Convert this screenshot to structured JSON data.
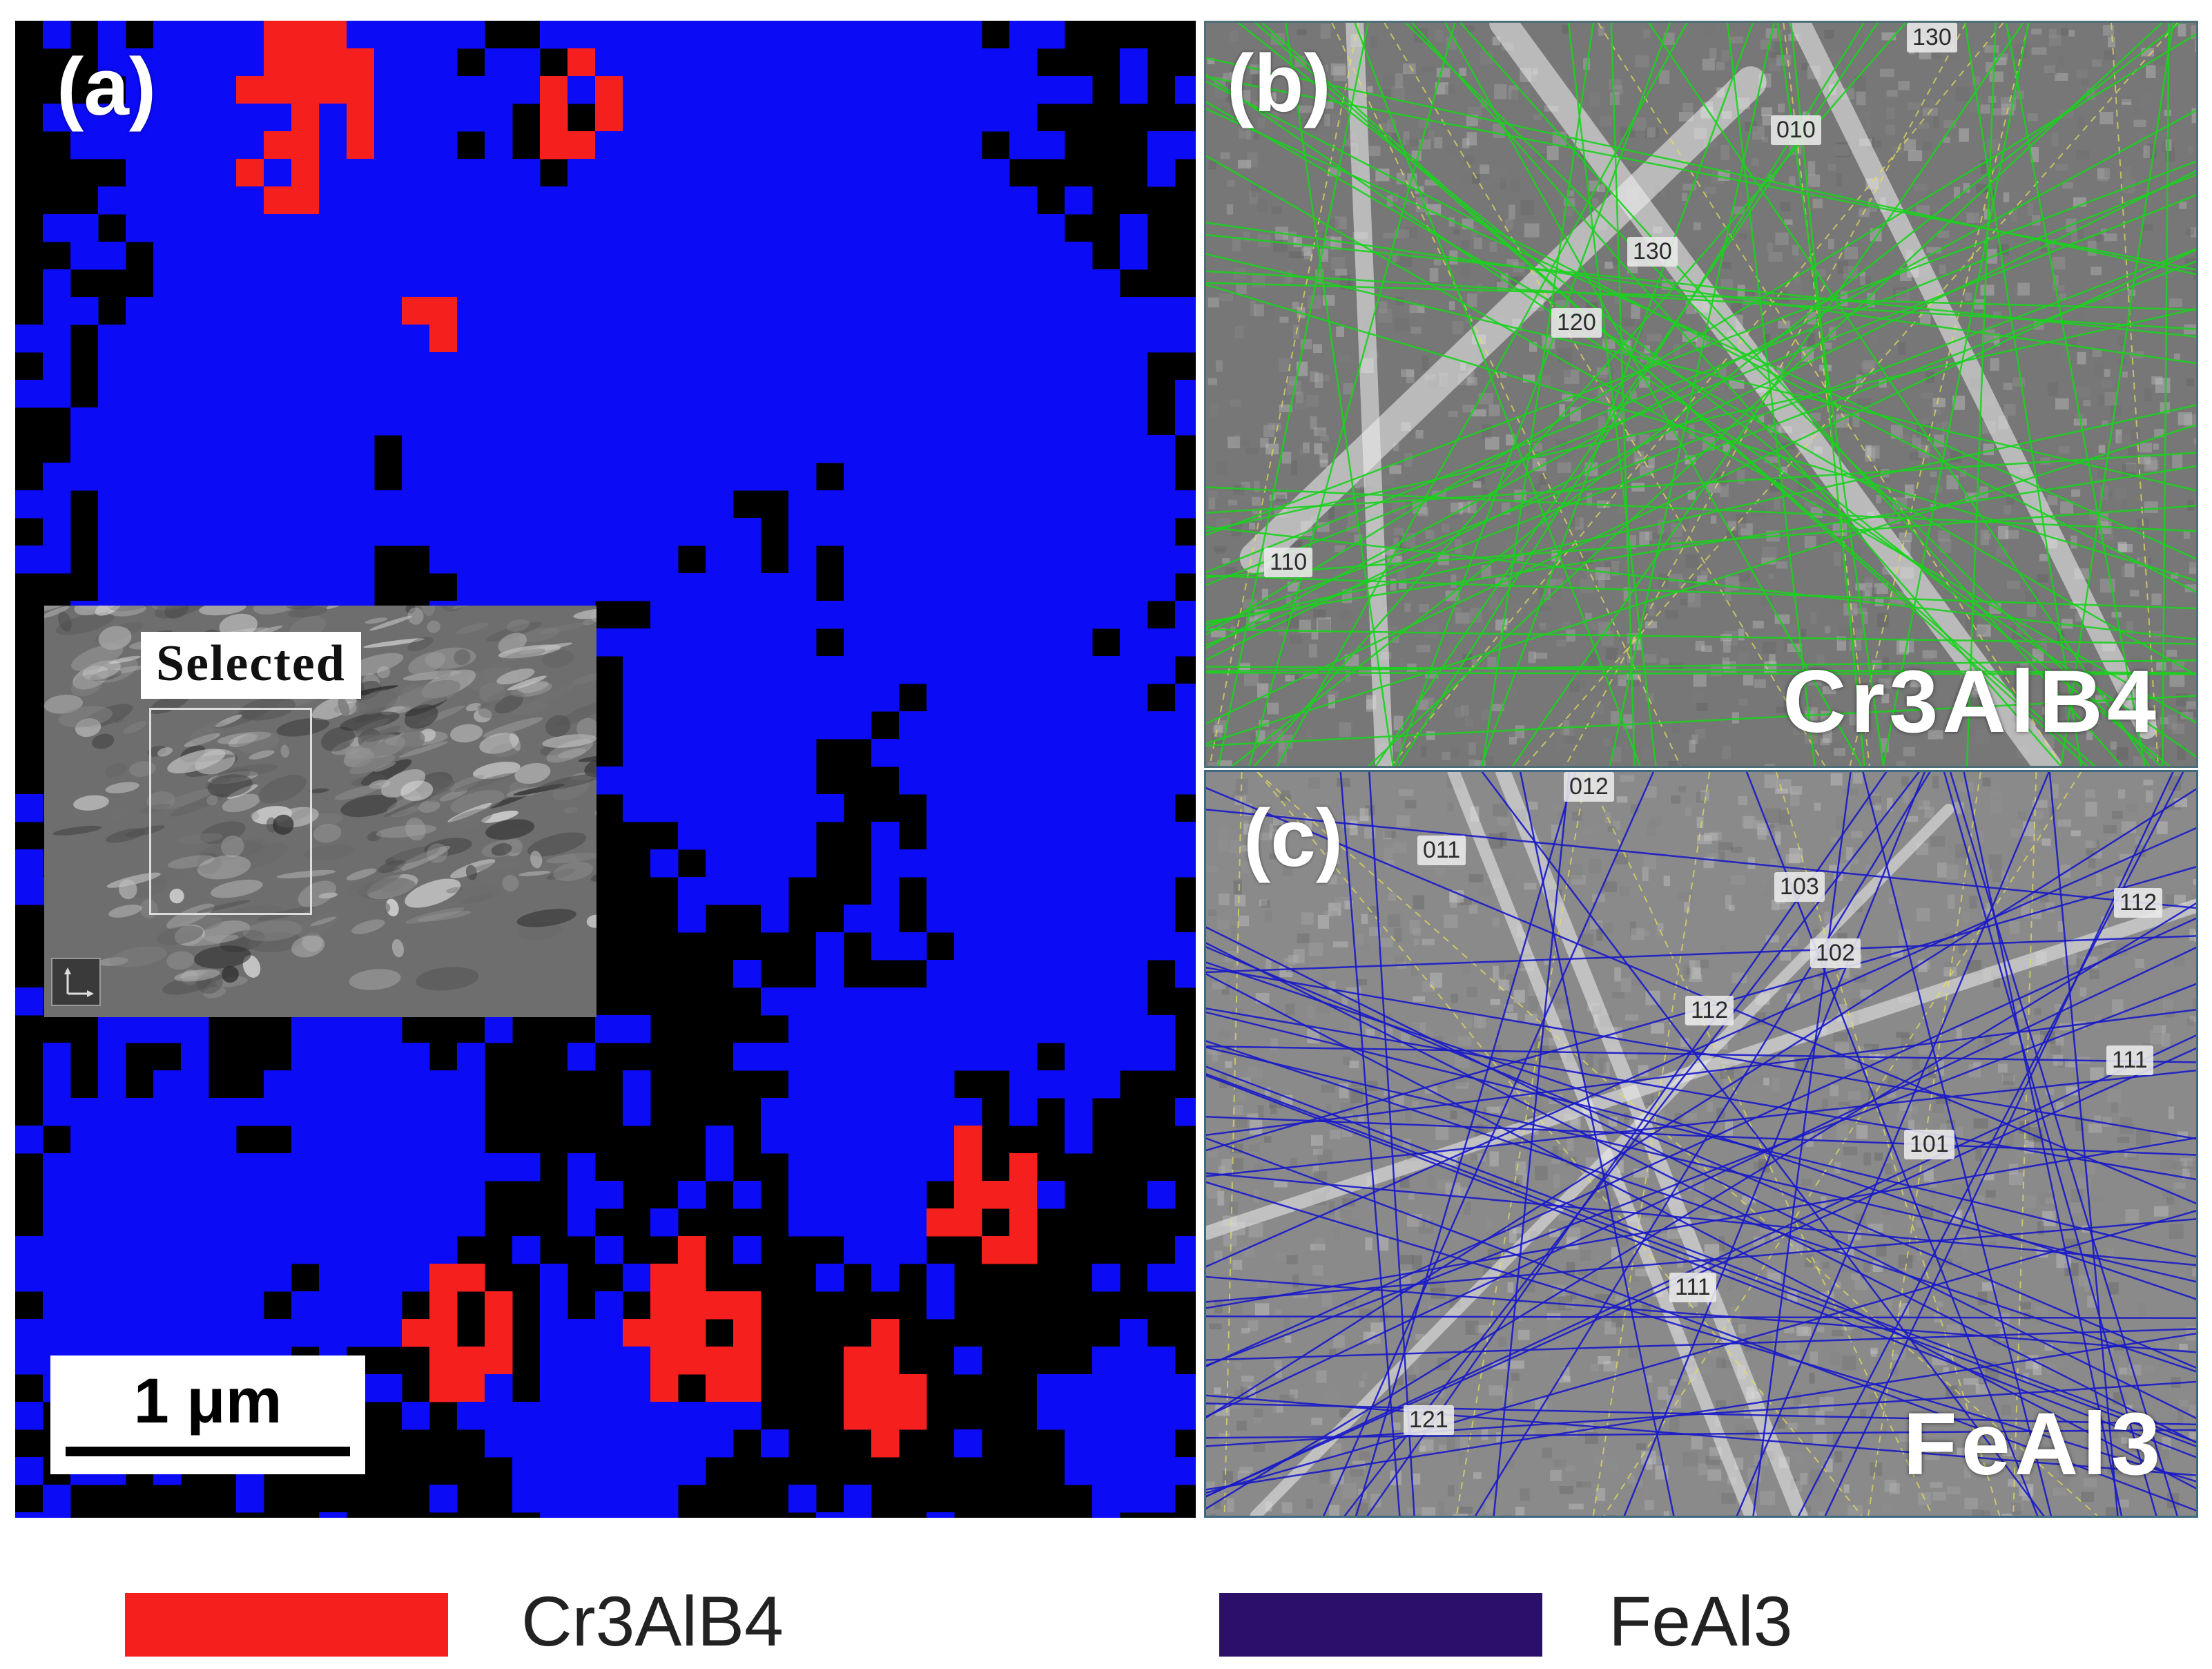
{
  "panels": {
    "a": {
      "letter": "(a)"
    },
    "b": {
      "letter": "(b)",
      "phase": "Cr3AlB4"
    },
    "c": {
      "letter": "(c)",
      "phase": "FeAl3"
    }
  },
  "inset": {
    "label": "Selected"
  },
  "scale_bar": {
    "text": "1 μm"
  },
  "band_labels_b": [
    "130",
    "010",
    "130",
    "120",
    "110"
  ],
  "band_labels_c": [
    "012",
    "011",
    "103",
    "112",
    "102",
    "112",
    "111",
    "101",
    "111",
    "121"
  ],
  "legend": [
    {
      "label": "Cr3AlB4",
      "color": "#f5201e"
    },
    {
      "label": "FeAl3",
      "color": "#2b0f68"
    }
  ],
  "colors": {
    "blue_phase": "#0b0bf5",
    "red_phase": "#f5201e",
    "unindexed": "#000000",
    "kikuchi_b": "#1ad21e",
    "kikuchi_c": "#1919c8"
  }
}
